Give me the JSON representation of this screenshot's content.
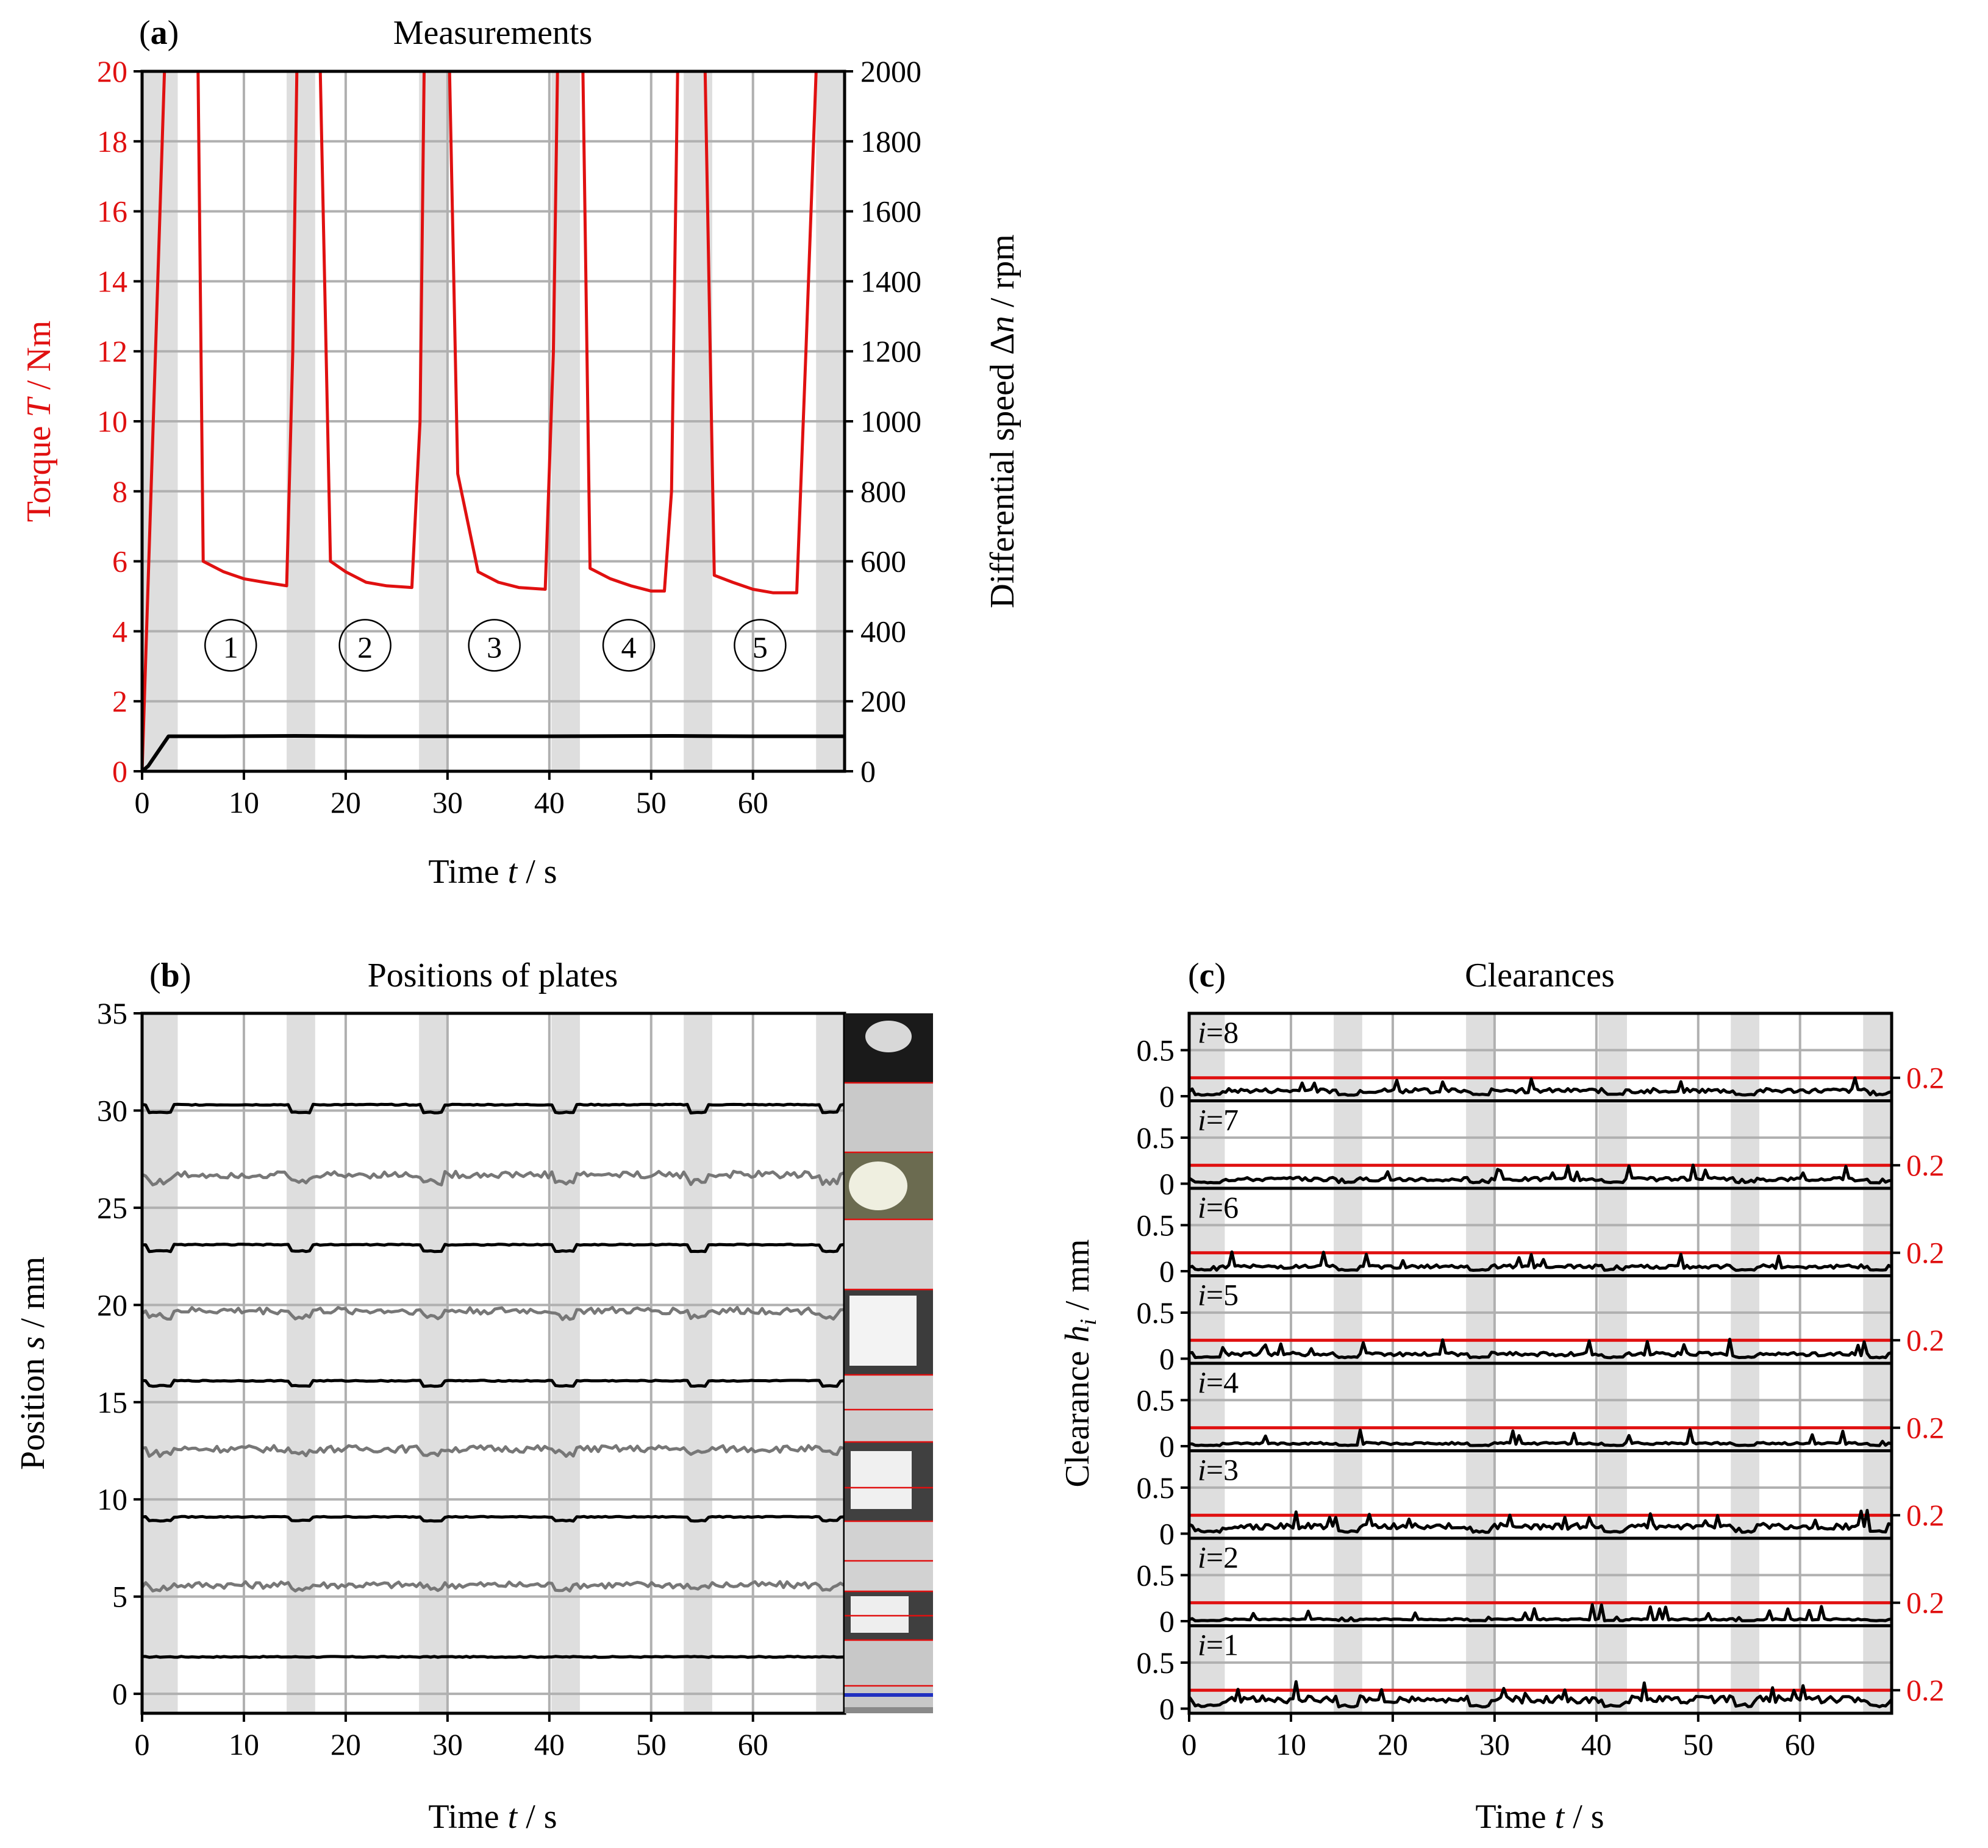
{
  "colors": {
    "red": "#e01010",
    "black": "#000000",
    "gray": "#777777",
    "grid": "#b0b0b0",
    "shade": "#dedede"
  },
  "shaded_intervals": [
    [
      0,
      3.5
    ],
    [
      14.2,
      17
    ],
    [
      27.2,
      30
    ],
    [
      40.2,
      43
    ],
    [
      53.2,
      56
    ],
    [
      66.2,
      69
    ]
  ],
  "panel_a": {
    "letter": "a",
    "title": "Measurements",
    "xlabel": [
      "Time ",
      "t",
      " / s"
    ],
    "ylabel_left": [
      "Torque ",
      "T",
      " / Nm"
    ],
    "ylabel_right": [
      "Differential speed Δ",
      "n",
      " / rpm"
    ],
    "xticks": [
      "0",
      "10",
      "20",
      "30",
      "40",
      "50",
      "60"
    ],
    "yticks_left": [
      "0",
      "2",
      "4",
      "6",
      "8",
      "10",
      "12",
      "14",
      "16",
      "18",
      "20"
    ],
    "yticks_right": [
      "0",
      "200",
      "400",
      "600",
      "800",
      "1000",
      "1200",
      "1400",
      "1600",
      "1800",
      "2000"
    ],
    "cycle_labels": [
      "1",
      "2",
      "3",
      "4",
      "5"
    ]
  },
  "panel_b": {
    "letter": "b",
    "title": "Positions of plates",
    "xlabel": [
      "Time ",
      "t",
      " / s"
    ],
    "ylabel": [
      "Position ",
      "s",
      " / mm"
    ],
    "xticks": [
      "0",
      "10",
      "20",
      "30",
      "40",
      "50",
      "60"
    ],
    "yticks": [
      "0",
      "5",
      "10",
      "15",
      "20",
      "25",
      "30",
      "35"
    ]
  },
  "panel_c": {
    "letter": "c",
    "title": "Clearances",
    "xlabel": [
      "Time ",
      "t",
      " / s"
    ],
    "ylabel": [
      "Clearance ",
      "h",
      "i",
      " / mm"
    ],
    "xticks": [
      "0",
      "10",
      "20",
      "30",
      "40",
      "50",
      "60"
    ],
    "strip_yticks": [
      "0",
      "0.5"
    ],
    "strip_labels": [
      "i",
      "=8",
      "i",
      "=7",
      "i",
      "=6",
      "i",
      "=5",
      "i",
      "=4",
      "i",
      "=3",
      "i",
      "=2",
      "i",
      "=1"
    ],
    "right_label": "0.2"
  },
  "chart_data": [
    {
      "panel": "a",
      "type": "line",
      "title": "Measurements",
      "xlabel": "Time t / s",
      "ylabel": "Torque T / Nm",
      "ylabel_right": "Differential speed Δn / rpm",
      "xlim": [
        0,
        69
      ],
      "ylim": [
        0,
        20
      ],
      "ylim_right": [
        0,
        2000
      ],
      "grid": true,
      "series": [
        {
          "name": "Torque T",
          "axis": "left",
          "color": "#e01010",
          "x": [
            0,
            2.2,
            2.4,
            4.5,
            5.5,
            6,
            8,
            10,
            12,
            14.2,
            14.8,
            15.2,
            16.4,
            17.5,
            18.5,
            20,
            22,
            24,
            26.5,
            27.3,
            27.7,
            28.4,
            29.4,
            30.2,
            31,
            33,
            35,
            37,
            39.6,
            40.4,
            40.8,
            41.5,
            42.5,
            43.3,
            44,
            46,
            48,
            50,
            51.3,
            52,
            52.6,
            53.4,
            54.3,
            55.3,
            56.2,
            58,
            60,
            62,
            64.3,
            65.2,
            66.2,
            66.3
          ],
          "y": [
            0,
            20,
            20,
            20,
            20,
            6.0,
            5.7,
            5.5,
            5.4,
            5.3,
            12,
            20,
            20,
            20,
            6.0,
            5.7,
            5.4,
            5.3,
            5.25,
            10,
            20,
            20,
            20,
            20,
            8.5,
            5.7,
            5.4,
            5.25,
            5.2,
            12,
            20,
            20,
            20,
            20,
            5.8,
            5.5,
            5.3,
            5.15,
            5.15,
            8,
            20,
            20,
            20,
            20,
            5.6,
            5.4,
            5.2,
            5.1,
            5.1,
            12,
            20,
            20
          ]
        },
        {
          "name": "Differential speed Δn",
          "axis": "right",
          "color": "#000000",
          "x": [
            0,
            0.6,
            2.6,
            8,
            15,
            22,
            30,
            40,
            52,
            60,
            69
          ],
          "y": [
            0,
            15,
            100,
            100,
            101,
            100,
            100,
            100,
            101,
            100,
            100
          ]
        }
      ],
      "annotations": [
        "1",
        "2",
        "3",
        "4",
        "5"
      ]
    },
    {
      "panel": "b",
      "type": "line",
      "title": "Positions of plates",
      "xlabel": "Time t / s",
      "ylabel": "Position s / mm",
      "xlim": [
        0,
        69
      ],
      "ylim": [
        -1,
        35
      ],
      "grid": true,
      "series": [
        {
          "name": "plate 1",
          "color": "#000000",
          "base": 1.9
        },
        {
          "name": "plate 2",
          "color": "#777777",
          "base": 5.6
        },
        {
          "name": "plate 3",
          "color": "#000000",
          "base": 9.1
        },
        {
          "name": "plate 4",
          "color": "#777777",
          "base": 12.6
        },
        {
          "name": "plate 5",
          "color": "#000000",
          "base": 16.1
        },
        {
          "name": "plate 6",
          "color": "#777777",
          "base": 19.7
        },
        {
          "name": "plate 7",
          "color": "#000000",
          "base": 23.1
        },
        {
          "name": "plate 8",
          "color": "#777777",
          "base": 26.7
        },
        {
          "name": "plate 9",
          "color": "#000000",
          "base": 30.3
        }
      ]
    },
    {
      "panel": "c",
      "type": "line",
      "title": "Clearances",
      "xlabel": "Time t / s",
      "ylabel": "Clearance h_i / mm",
      "xlim": [
        0,
        69
      ],
      "strip_ylim": [
        -0.05,
        0.9
      ],
      "grid": true,
      "threshold": 0.2,
      "series": [
        {
          "name": "i=8",
          "typical": 0.06
        },
        {
          "name": "i=7",
          "typical": 0.05
        },
        {
          "name": "i=6",
          "typical": 0.05
        },
        {
          "name": "i=5",
          "typical": 0.05
        },
        {
          "name": "i=4",
          "typical": 0.03
        },
        {
          "name": "i=3",
          "typical": 0.08
        },
        {
          "name": "i=2",
          "typical": 0.02
        },
        {
          "name": "i=1",
          "typical": 0.1
        }
      ]
    }
  ]
}
